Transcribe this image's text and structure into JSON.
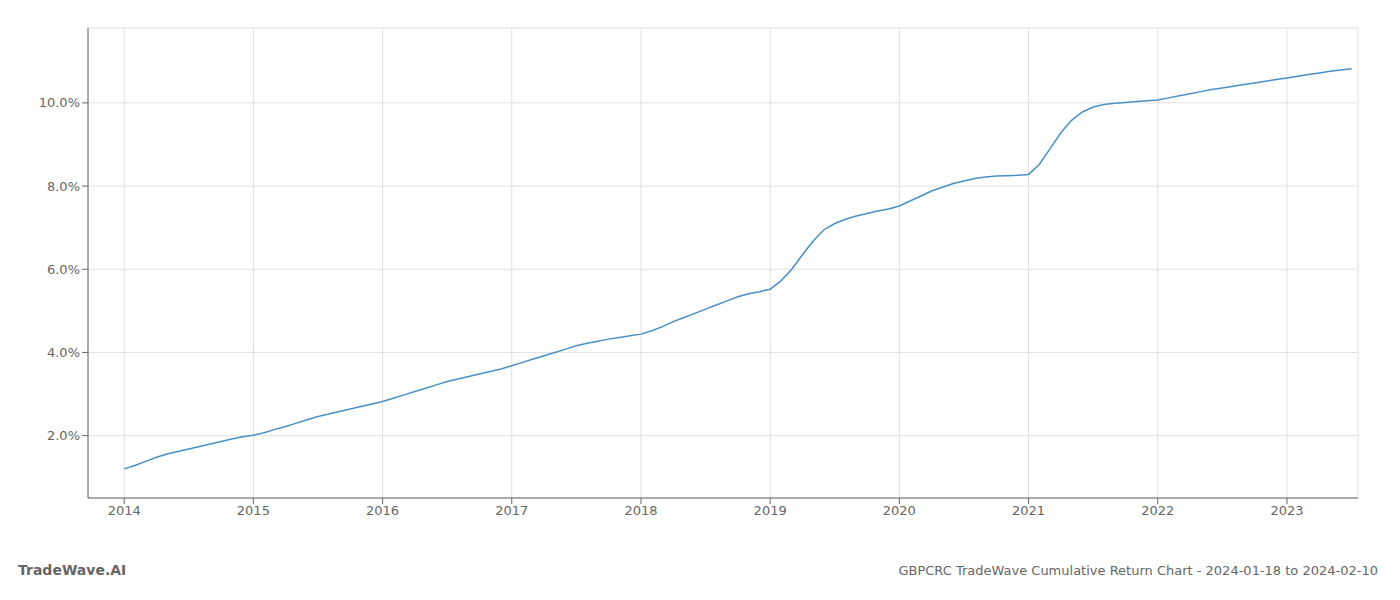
{
  "chart_data": {
    "type": "line",
    "title": "GBPCRC TradeWave Cumulative Return Chart - 2024-01-18 to 2024-02-10",
    "annotations": [
      {
        "text": "TradeWave.AI"
      }
    ],
    "color": "#4a90c4",
    "grid": true,
    "x": [
      2014.0,
      2014.083,
      2014.167,
      2014.25,
      2014.333,
      2014.417,
      2014.5,
      2014.583,
      2014.667,
      2014.75,
      2014.833,
      2014.917,
      2015.0,
      2015.083,
      2015.167,
      2015.25,
      2015.333,
      2015.417,
      2015.5,
      2015.583,
      2015.667,
      2015.75,
      2015.833,
      2015.917,
      2016.0,
      2016.083,
      2016.167,
      2016.25,
      2016.333,
      2016.417,
      2016.5,
      2016.583,
      2016.667,
      2016.75,
      2016.833,
      2016.917,
      2017.0,
      2017.083,
      2017.167,
      2017.25,
      2017.333,
      2017.417,
      2017.5,
      2017.583,
      2017.667,
      2017.75,
      2017.833,
      2017.917,
      2018.0,
      2018.083,
      2018.167,
      2018.25,
      2018.333,
      2018.417,
      2018.5,
      2018.583,
      2018.667,
      2018.75,
      2018.833,
      2018.917,
      2019.0,
      2019.083,
      2019.167,
      2019.25,
      2019.333,
      2019.417,
      2019.5,
      2019.583,
      2019.667,
      2019.75,
      2019.833,
      2019.917,
      2020.0,
      2020.083,
      2020.167,
      2020.25,
      2020.333,
      2020.417,
      2020.5,
      2020.583,
      2020.667,
      2020.75,
      2020.833,
      2020.917,
      2021.0,
      2021.083,
      2021.167,
      2021.25,
      2021.333,
      2021.417,
      2021.5,
      2021.583,
      2021.667,
      2021.75,
      2021.833,
      2021.917,
      2022.0,
      2022.083,
      2022.167,
      2022.25,
      2022.333,
      2022.417,
      2022.5,
      2022.583,
      2022.667,
      2022.75,
      2022.833,
      2022.917,
      2023.0,
      2023.083,
      2023.167,
      2023.25,
      2023.333,
      2023.417,
      2023.5
    ],
    "values": [
      1.2,
      1.28,
      1.38,
      1.48,
      1.56,
      1.62,
      1.68,
      1.74,
      1.8,
      1.86,
      1.92,
      1.97,
      2.01,
      2.07,
      2.15,
      2.22,
      2.3,
      2.38,
      2.46,
      2.52,
      2.58,
      2.64,
      2.7,
      2.76,
      2.82,
      2.9,
      2.98,
      3.06,
      3.14,
      3.22,
      3.3,
      3.36,
      3.42,
      3.48,
      3.54,
      3.6,
      3.68,
      3.76,
      3.84,
      3.92,
      4.0,
      4.08,
      4.16,
      4.22,
      4.27,
      4.32,
      4.36,
      4.4,
      4.44,
      4.52,
      4.62,
      4.74,
      4.84,
      4.94,
      5.04,
      5.14,
      5.24,
      5.34,
      5.41,
      5.46,
      5.52,
      5.72,
      6.0,
      6.35,
      6.68,
      6.95,
      7.1,
      7.2,
      7.28,
      7.34,
      7.4,
      7.45,
      7.52,
      7.64,
      7.76,
      7.88,
      7.97,
      8.06,
      8.12,
      8.18,
      8.22,
      8.24,
      8.25,
      8.26,
      8.28,
      8.52,
      8.9,
      9.28,
      9.58,
      9.78,
      9.9,
      9.96,
      9.99,
      10.01,
      10.03,
      10.05,
      10.07,
      10.12,
      10.17,
      10.22,
      10.27,
      10.32,
      10.36,
      10.4,
      10.44,
      10.48,
      10.52,
      10.56,
      10.6,
      10.64,
      10.68,
      10.72,
      10.76,
      10.79,
      10.82
    ],
    "xlim": [
      2013.72,
      2023.55
    ],
    "xticks": [
      2014,
      2015,
      2016,
      2017,
      2018,
      2019,
      2020,
      2021,
      2022,
      2023
    ],
    "ylim": [
      0.5,
      11.8
    ],
    "yticks": [
      {
        "value": 2.0,
        "label": "2.0%"
      },
      {
        "value": 4.0,
        "label": "4.0%"
      },
      {
        "value": 6.0,
        "label": "6.0%"
      },
      {
        "value": 8.0,
        "label": "8.0%"
      },
      {
        "value": 10.0,
        "label": "10.0%"
      }
    ]
  }
}
